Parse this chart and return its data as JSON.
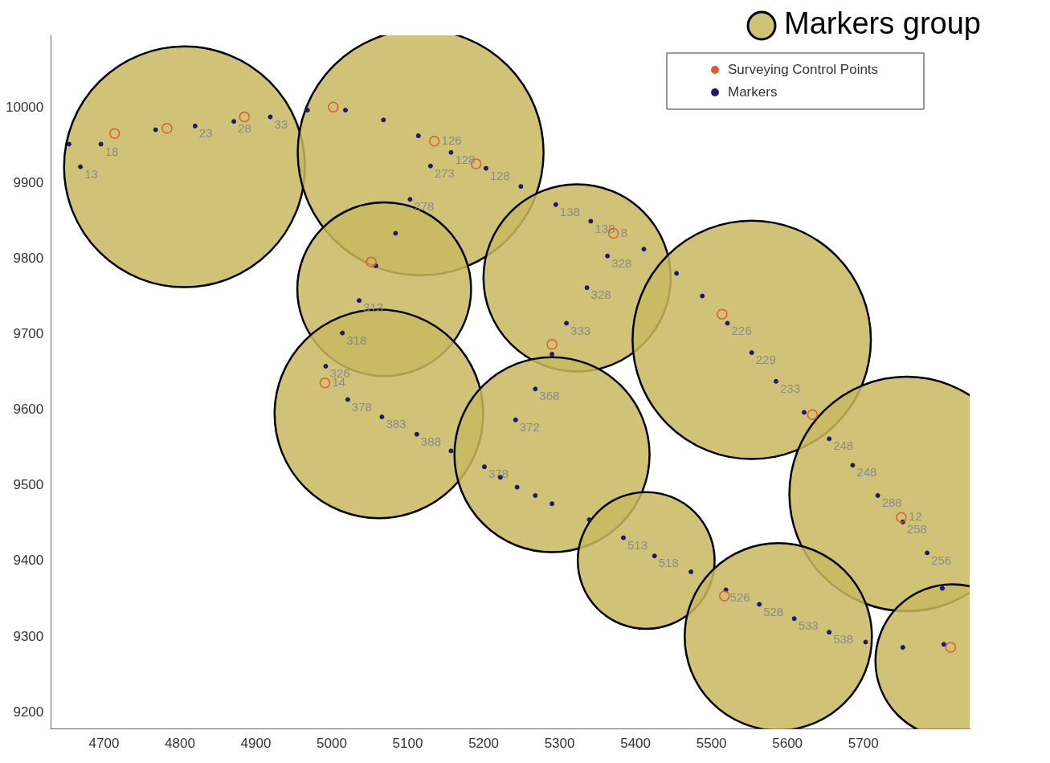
{
  "chart_data": {
    "type": "scatter",
    "xlim": [
      4630,
      5840
    ],
    "ylim": [
      9178,
      10096
    ],
    "xticks": [
      4700,
      4800,
      4900,
      5000,
      5100,
      5200,
      5300,
      5400,
      5500,
      5600,
      5700
    ],
    "yticks": [
      9200,
      9300,
      9400,
      9500,
      9600,
      9700,
      9800,
      9900,
      10000
    ],
    "grid": false,
    "legend": "top right",
    "marker": "circle",
    "series": [
      {
        "name": "Surveying Control Points",
        "color": "#e05a2a",
        "x": [
          4714,
          4783,
          4885,
          5002,
          5135,
          5190,
          5371,
          5052,
          5290,
          5514,
          4991,
          5633,
          5750,
          5517,
          5815
        ],
        "values": [
          9966,
          9973,
          9988,
          10001,
          9956,
          9926,
          9834,
          9796,
          9687,
          9727,
          9636,
          9594,
          9458,
          9354,
          9286
        ]
      },
      {
        "name": "Markers",
        "color": "#1a1a6e",
        "x": [
          4654,
          4669,
          4696,
          4768,
          4820,
          4871,
          4919,
          4968,
          5018,
          5068,
          5114,
          5130,
          5157,
          5203,
          5103,
          5084,
          5058,
          5036,
          5014,
          4992,
          5021,
          5066,
          5112,
          5157,
          5201,
          5222,
          5244,
          5268,
          5290,
          5242,
          5268,
          5290,
          5309,
          5336,
          5363,
          5341,
          5295,
          5249,
          5411,
          5454,
          5488,
          5521,
          5553,
          5585,
          5622,
          5655,
          5686,
          5719,
          5752,
          5784,
          5804,
          5339,
          5384,
          5425,
          5473,
          5519,
          5563,
          5609,
          5655,
          5703,
          5752,
          5806
        ],
        "values": [
          9952,
          9922,
          9952,
          9971,
          9976,
          9982,
          9988,
          9997,
          9997,
          9984,
          9963,
          9923,
          9941,
          9920,
          9879,
          9834,
          9791,
          9745,
          9702,
          9658,
          9614,
          9591,
          9568,
          9546,
          9525,
          9511,
          9498,
          9487,
          9476,
          9587,
          9628,
          9674,
          9715,
          9762,
          9804,
          9850,
          9872,
          9896,
          9813,
          9781,
          9751,
          9715,
          9676,
          9638,
          9597,
          9562,
          9527,
          9487,
          9452,
          9411,
          9364,
          9455,
          9431,
          9407,
          9386,
          9362,
          9343,
          9324,
          9306,
          9293,
          9286,
          9290
        ]
      },
      {
        "name": "Markers group",
        "type": "bubble",
        "color": "#c8b860",
        "x": [
          4806,
          5117,
          5069,
          5323,
          5553,
          5062,
          5290,
          5414,
          5757,
          5588,
          5817
        ],
        "values": [
          9922,
          9941,
          9760,
          9775,
          9693,
          9595,
          9541,
          9401,
          9489,
          9300,
          9268
        ],
        "sizes": [
          0.96,
          1,
          0.5,
          0.58,
          0.94,
          0.72,
          0.63,
          0.31,
          0.91,
          0.58,
          0.39
        ]
      }
    ],
    "annotations": [
      {
        "text": "13",
        "x": 4669,
        "y": 9922
      },
      {
        "text": "18",
        "x": 4696,
        "y": 9952
      },
      {
        "text": "23",
        "x": 4820,
        "y": 9976
      },
      {
        "text": "28",
        "x": 4871,
        "y": 9982
      },
      {
        "text": "33",
        "x": 4919,
        "y": 9988
      },
      {
        "text": "126",
        "x": 5135,
        "y": 9956
      },
      {
        "text": "128",
        "x": 5157,
        "y": 9941
      },
      {
        "text": "128",
        "x": 5203,
        "y": 9920
      },
      {
        "text": "273",
        "x": 5130,
        "y": 9923
      },
      {
        "text": "278",
        "x": 5103,
        "y": 9879
      },
      {
        "text": "138",
        "x": 5295,
        "y": 9872
      },
      {
        "text": "138",
        "x": 5341,
        "y": 9850
      },
      {
        "text": "328",
        "x": 5363,
        "y": 9804
      },
      {
        "text": "328",
        "x": 5336,
        "y": 9762
      },
      {
        "text": "333",
        "x": 5309,
        "y": 9715
      },
      {
        "text": "313",
        "x": 5036,
        "y": 9745
      },
      {
        "text": "318",
        "x": 5014,
        "y": 9702
      },
      {
        "text": "326",
        "x": 4992,
        "y": 9658
      },
      {
        "text": "378",
        "x": 5021,
        "y": 9614
      },
      {
        "text": "383",
        "x": 5066,
        "y": 9591
      },
      {
        "text": "388",
        "x": 5112,
        "y": 9568
      },
      {
        "text": "368",
        "x": 5268,
        "y": 9628
      },
      {
        "text": "372",
        "x": 5242,
        "y": 9587
      },
      {
        "text": "378",
        "x": 5201,
        "y": 9525
      },
      {
        "text": "226",
        "x": 5521,
        "y": 9715
      },
      {
        "text": "229",
        "x": 5553,
        "y": 9676
      },
      {
        "text": "233",
        "x": 5585,
        "y": 9638
      },
      {
        "text": "248",
        "x": 5655,
        "y": 9562
      },
      {
        "text": "248",
        "x": 5686,
        "y": 9527
      },
      {
        "text": "288",
        "x": 5719,
        "y": 9487
      },
      {
        "text": "258",
        "x": 5752,
        "y": 9452
      },
      {
        "text": "256",
        "x": 5784,
        "y": 9411
      },
      {
        "text": "513",
        "x": 5384,
        "y": 9431
      },
      {
        "text": "518",
        "x": 5425,
        "y": 9407
      },
      {
        "text": "526",
        "x": 5519,
        "y": 9362
      },
      {
        "text": "528",
        "x": 5563,
        "y": 9343
      },
      {
        "text": "533",
        "x": 5609,
        "y": 9324
      },
      {
        "text": "538",
        "x": 5655,
        "y": 9306
      },
      {
        "text": "14",
        "x": 4991,
        "y": 9636
      },
      {
        "text": "12",
        "x": 5750,
        "y": 9458
      },
      {
        "text": "8",
        "x": 5371,
        "y": 9834
      }
    ]
  }
}
